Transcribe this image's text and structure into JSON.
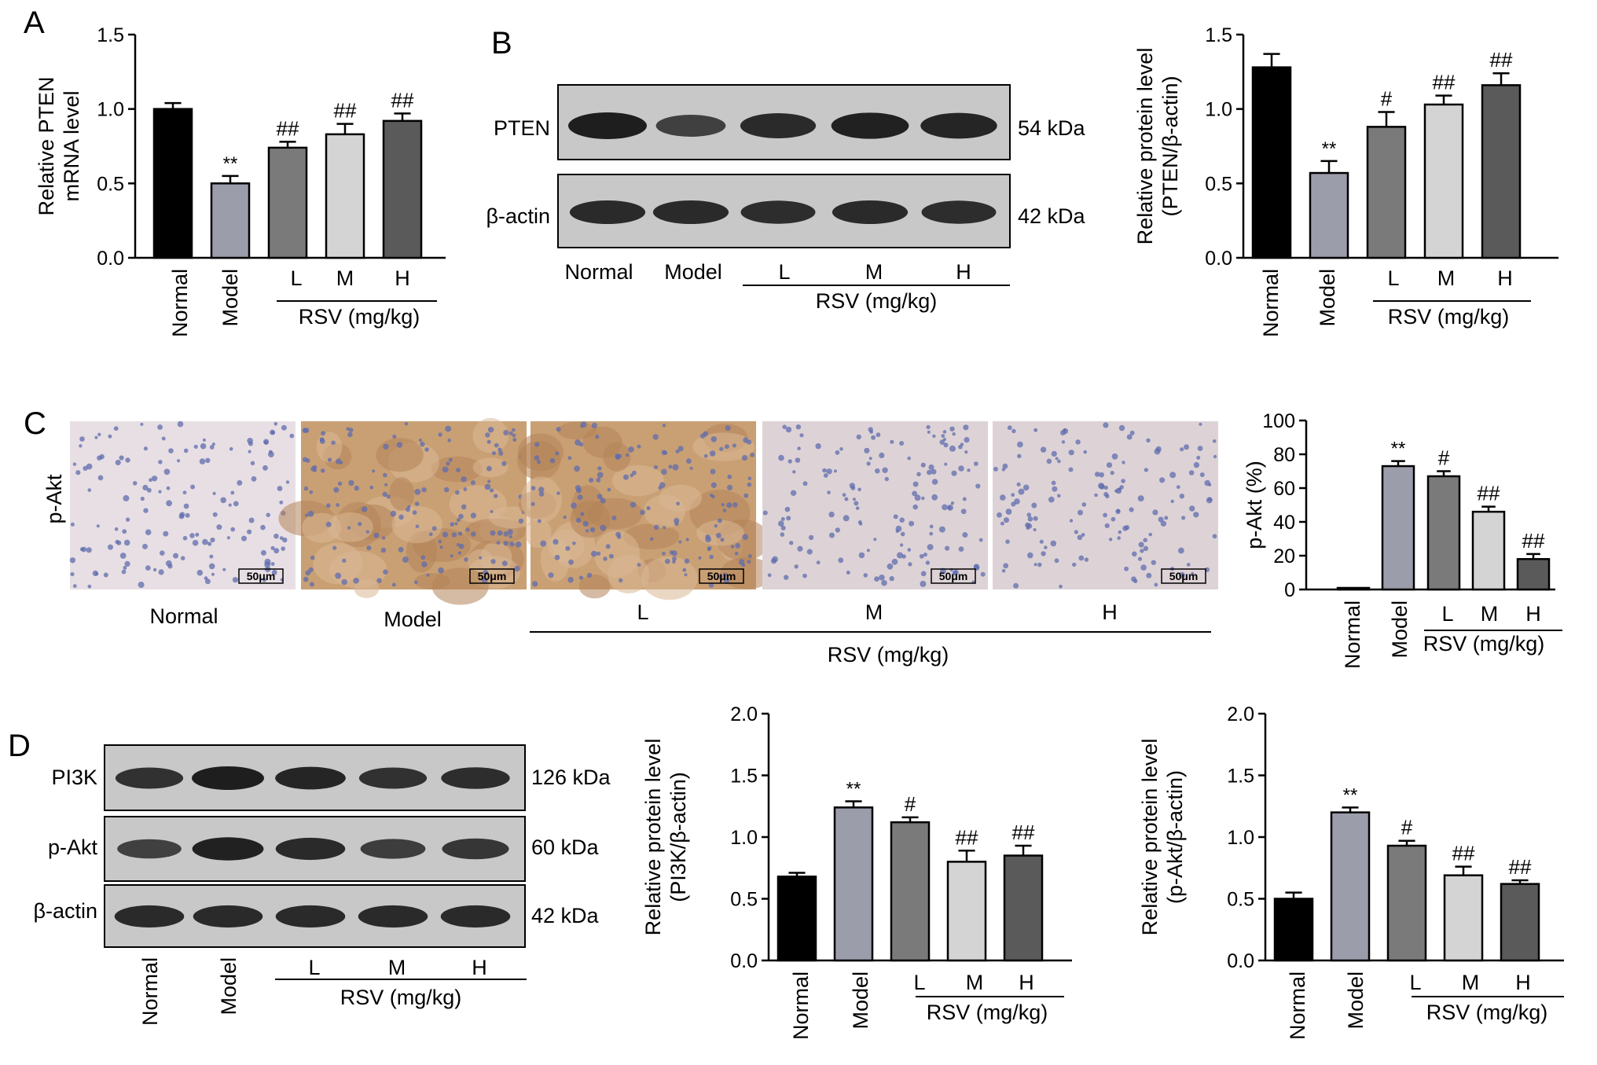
{
  "figure": {
    "panels": [
      "A",
      "B",
      "C",
      "D"
    ],
    "groups": [
      "Normal",
      "Model",
      "L",
      "M",
      "H"
    ],
    "dose_group_label": "RSV (mg/kg)",
    "scale_bar": "50μm",
    "ihc_row_label": "p-Akt"
  },
  "blots": {
    "B": [
      {
        "band": "PTEN",
        "size": "54 kDa",
        "intensity": [
          1.0,
          0.55,
          0.85,
          0.95,
          0.9
        ]
      },
      {
        "band": "β-actin",
        "size": "42 kDa",
        "intensity": [
          0.85,
          0.85,
          0.8,
          0.85,
          0.8
        ]
      }
    ],
    "D": [
      {
        "band": "PI3K",
        "size": "126 kDa",
        "intensity": [
          0.75,
          1.0,
          0.9,
          0.75,
          0.8
        ]
      },
      {
        "band": "p-Akt",
        "size": "60 kDa",
        "intensity": [
          0.55,
          0.95,
          0.85,
          0.6,
          0.7
        ]
      },
      {
        "band": "β-actin",
        "size": "42 kDa",
        "intensity": [
          0.85,
          0.85,
          0.85,
          0.85,
          0.85
        ]
      }
    ]
  },
  "ihc_panels": [
    {
      "label": "Normal",
      "stain": "none"
    },
    {
      "label": "Model",
      "stain": "strong"
    },
    {
      "label": "L",
      "stain": "strong"
    },
    {
      "label": "M",
      "stain": "weak"
    },
    {
      "label": "H",
      "stain": "weak"
    }
  ],
  "colors": {
    "bars": [
      "#000000",
      "#9c9dab",
      "#7a7a7a",
      "#d4d4d4",
      "#5a5a5a"
    ],
    "blot_bg": "#c8c8c8",
    "band": "#1e1e1e"
  },
  "chart_data": [
    {
      "panel": "A",
      "type": "bar",
      "categories": [
        "Normal",
        "Model",
        "L",
        "M",
        "H"
      ],
      "values": [
        1.0,
        0.5,
        0.74,
        0.83,
        0.92
      ],
      "errors": [
        0.04,
        0.05,
        0.04,
        0.07,
        0.05
      ],
      "marks": [
        "",
        "**",
        "##",
        "##",
        "##"
      ],
      "ylabel": [
        "Relative PTEN",
        "mRNA level"
      ],
      "yticks": [
        "0.0",
        "0.5",
        "1.0",
        "1.5"
      ],
      "ylim": [
        0,
        1.5
      ],
      "dose_group_label": "RSV (mg/kg)"
    },
    {
      "panel": "B",
      "type": "bar",
      "categories": [
        "Normal",
        "Model",
        "L",
        "M",
        "H"
      ],
      "values": [
        1.28,
        0.57,
        0.88,
        1.03,
        1.16
      ],
      "errors": [
        0.09,
        0.08,
        0.1,
        0.06,
        0.08
      ],
      "marks": [
        "",
        "**",
        "#",
        "##",
        "##"
      ],
      "ylabel": [
        "Relative protein level",
        "(PTEN/β-actin)"
      ],
      "yticks": [
        "0.0",
        "0.5",
        "1.0",
        "1.5"
      ],
      "ylim": [
        0,
        1.5
      ],
      "dose_group_label": "RSV (mg/kg)"
    },
    {
      "panel": "C",
      "type": "bar",
      "categories": [
        "Normal",
        "Model",
        "L",
        "M",
        "H"
      ],
      "values": [
        0.5,
        73,
        67,
        46,
        18
      ],
      "errors": [
        0,
        3,
        3,
        3,
        3
      ],
      "marks": [
        "",
        "**",
        "#",
        "##",
        "##"
      ],
      "ylabel": [
        "p-Akt (%)"
      ],
      "yticks": [
        "0",
        "20",
        "40",
        "60",
        "80",
        "100"
      ],
      "ylim": [
        0,
        100
      ],
      "dose_group_label": "RSV (mg/kg)"
    },
    {
      "panel": "D1",
      "type": "bar",
      "categories": [
        "Normal",
        "Model",
        "L",
        "M",
        "H"
      ],
      "values": [
        0.68,
        1.24,
        1.12,
        0.8,
        0.85
      ],
      "errors": [
        0.03,
        0.05,
        0.04,
        0.09,
        0.08
      ],
      "marks": [
        "",
        "**",
        "#",
        "##",
        "##"
      ],
      "ylabel": [
        "Relative protein level",
        "(PI3K/β-actin)"
      ],
      "yticks": [
        "0.0",
        "0.5",
        "1.0",
        "1.5",
        "2.0"
      ],
      "ylim": [
        0,
        2.0
      ],
      "dose_group_label": "RSV (mg/kg)"
    },
    {
      "panel": "D2",
      "type": "bar",
      "categories": [
        "Normal",
        "Model",
        "L",
        "M",
        "H"
      ],
      "values": [
        0.5,
        1.2,
        0.93,
        0.69,
        0.62
      ],
      "errors": [
        0.05,
        0.04,
        0.04,
        0.07,
        0.03
      ],
      "marks": [
        "",
        "**",
        "#",
        "##",
        "##"
      ],
      "ylabel": [
        "Relative protein level",
        "(p-Akt/β-actin)"
      ],
      "yticks": [
        "0.0",
        "0.5",
        "1.0",
        "1.5",
        "2.0"
      ],
      "ylim": [
        0,
        2.0
      ],
      "dose_group_label": "RSV (mg/kg)"
    }
  ]
}
